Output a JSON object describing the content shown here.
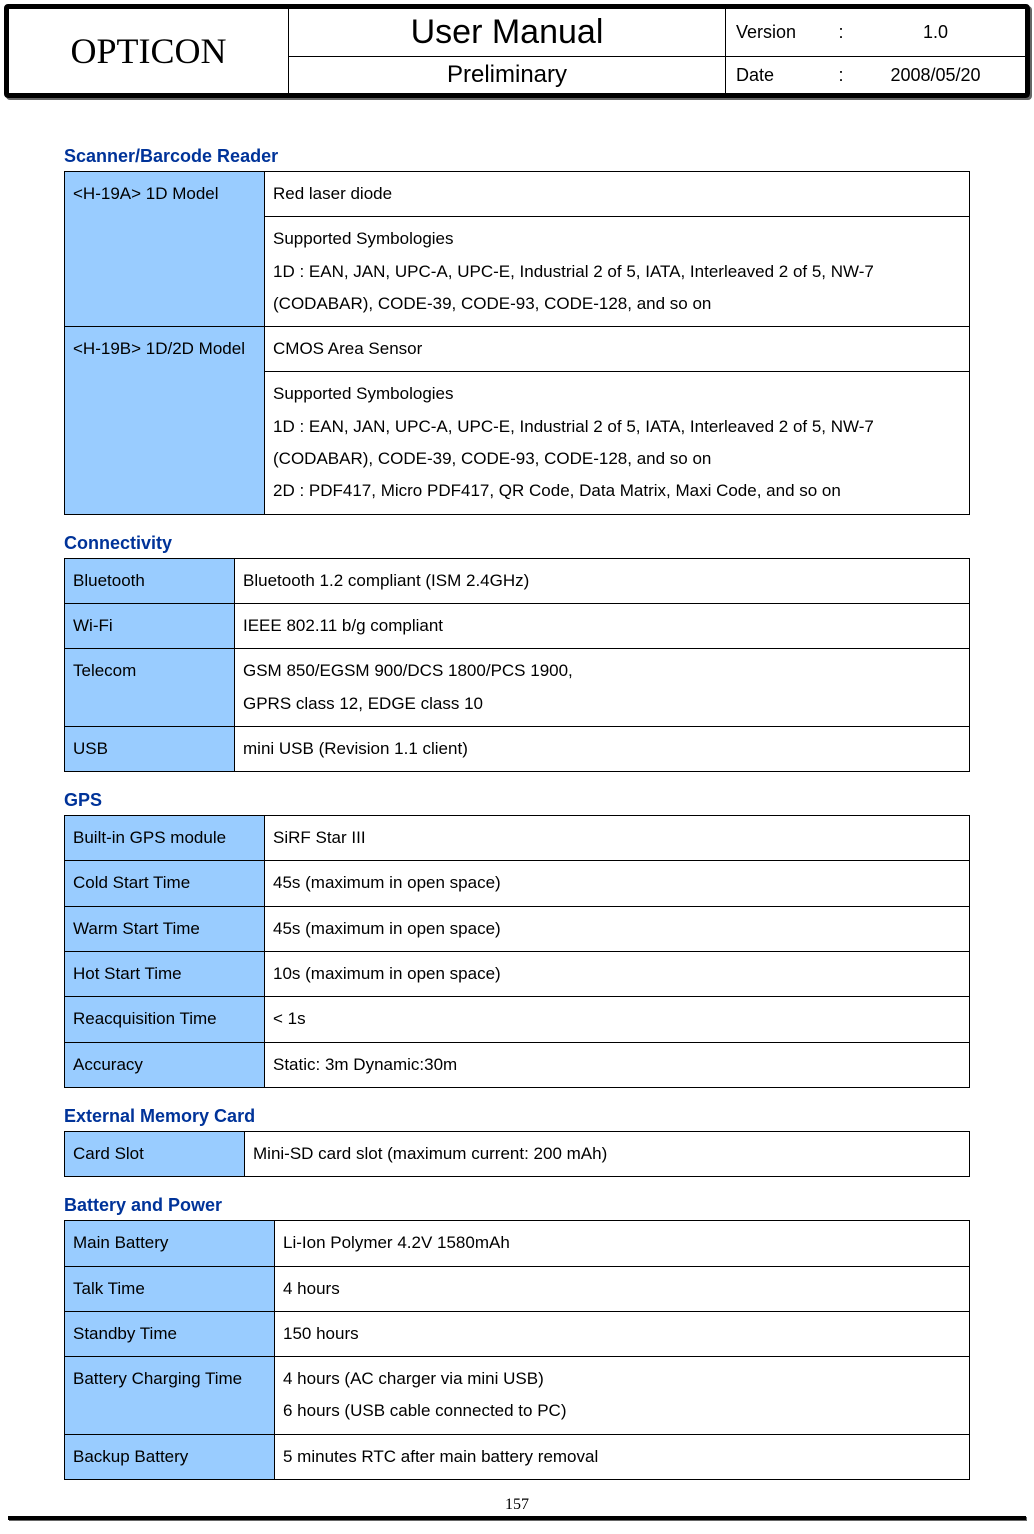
{
  "header": {
    "logo": "OPTICON",
    "title": "User Manual",
    "subtitle": "Preliminary",
    "version_label": "Version",
    "version_value": "1.0",
    "date_label": "Date",
    "date_value": "2008/05/20"
  },
  "colors": {
    "section_title": "#003399",
    "key_bg": "#99ccff",
    "border": "#000000",
    "text": "#000000"
  },
  "fonts": {
    "body_family": "Verdana, Tahoma, Arial, sans-serif",
    "logo_family": "Times New Roman, serif",
    "title_family": "Arial, sans-serif",
    "body_size_pt": 13,
    "section_title_pt": 14,
    "logo_pt": 27,
    "title_pt": 26,
    "subtitle_pt": 18
  },
  "sections": {
    "scanner": {
      "title": "Scanner/Barcode Reader",
      "rows": [
        {
          "key": "<H-19A> 1D Model",
          "val": "Red laser diode",
          "rowspan": 2
        },
        {
          "val": "Supported Symbologies\n1D : EAN, JAN, UPC-A, UPC-E, Industrial 2 of 5, IATA, Interleaved 2 of 5, NW-7 (CODABAR), CODE-39, CODE-93, CODE-128, and so on"
        },
        {
          "key": "<H-19B> 1D/2D Model",
          "val": "CMOS Area Sensor",
          "rowspan": 2
        },
        {
          "val": "Supported Symbologies\n1D : EAN, JAN, UPC-A, UPC-E, Industrial 2 of 5, IATA, Interleaved 2 of 5, NW-7 (CODABAR), CODE-39, CODE-93, CODE-128, and so on\n2D : PDF417, Micro PDF417, QR Code, Data Matrix, Maxi Code, and so on"
        }
      ]
    },
    "connectivity": {
      "title": "Connectivity",
      "rows": [
        {
          "key": "Bluetooth",
          "val": "Bluetooth 1.2 compliant (ISM 2.4GHz)"
        },
        {
          "key": "Wi-Fi",
          "val": "IEEE 802.11 b/g compliant"
        },
        {
          "key": "Telecom",
          "val": "GSM 850/EGSM 900/DCS 1800/PCS 1900,\nGPRS class 12, EDGE class 10"
        },
        {
          "key": "USB",
          "val": "mini USB (Revision 1.1 client)"
        }
      ]
    },
    "gps": {
      "title": "GPS",
      "rows": [
        {
          "key": "Built-in GPS module",
          "val": "SiRF Star III"
        },
        {
          "key": "Cold Start Time",
          "val": "45s (maximum in open space)"
        },
        {
          "key": "Warm Start Time",
          "val": "45s (maximum in open space)"
        },
        {
          "key": "Hot Start Time",
          "val": "10s (maximum in open space)"
        },
        {
          "key": "Reacquisition Time",
          "val": "< 1s"
        },
        {
          "key": "Accuracy",
          "val": "Static: 3m   Dynamic:30m"
        }
      ]
    },
    "memory": {
      "title": "External Memory Card",
      "rows": [
        {
          "key": "Card Slot",
          "val": "Mini-SD card slot (maximum current: 200 mAh)"
        }
      ]
    },
    "battery": {
      "title": "Battery and Power",
      "rows": [
        {
          "key": "Main Battery",
          "val": "Li-Ion Polymer 4.2V 1580mAh"
        },
        {
          "key": "Talk Time",
          "val": "4 hours"
        },
        {
          "key": "Standby Time",
          "val": "150 hours"
        },
        {
          "key": "Battery Charging Time",
          "val": "4 hours (AC charger via mini USB)\n6 hours (USB cable connected to PC)"
        },
        {
          "key": "Backup Battery",
          "val": "5 minutes RTC after main battery removal"
        }
      ]
    }
  },
  "page_number": "157"
}
